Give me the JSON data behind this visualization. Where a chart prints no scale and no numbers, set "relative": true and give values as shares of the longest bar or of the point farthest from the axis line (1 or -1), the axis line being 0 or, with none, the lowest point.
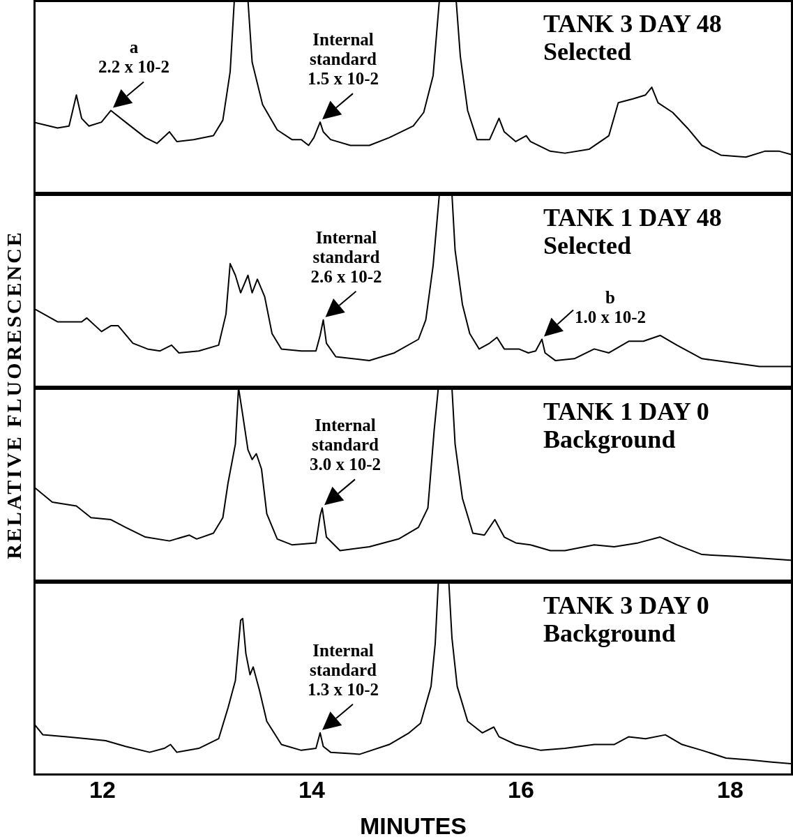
{
  "chart_data": [
    {
      "type": "line",
      "title": "TANK 3 DAY 48",
      "subtitle": "Selected",
      "relative": true,
      "xlim": [
        11.34,
        18.6
      ],
      "tick_labels": false,
      "x": [
        11.34,
        11.57,
        11.68,
        11.75,
        11.8,
        11.87,
        11.99,
        12.08,
        12.22,
        12.41,
        12.52,
        12.64,
        12.71,
        12.87,
        13.06,
        13.15,
        13.22,
        13.26,
        13.39,
        13.43,
        13.53,
        13.67,
        13.81,
        13.9,
        13.97,
        14.02,
        14.08,
        14.11,
        14.18,
        14.37,
        14.55,
        14.74,
        14.97,
        15.07,
        15.16,
        15.22,
        15.38,
        15.42,
        15.49,
        15.58,
        15.7,
        15.79,
        15.84,
        15.95,
        16.05,
        16.09,
        16.28,
        16.42,
        16.65,
        16.84,
        16.93,
        17.07,
        17.19,
        17.25,
        17.31,
        17.45,
        17.59,
        17.73,
        17.91,
        18.15,
        18.33,
        18.47,
        18.6
      ],
      "series": [
        {
          "color": "#000000",
          "values": [
            0.37,
            0.34,
            0.35,
            0.51,
            0.39,
            0.35,
            0.37,
            0.43,
            0.37,
            0.29,
            0.26,
            0.32,
            0.27,
            0.28,
            0.3,
            0.38,
            0.63,
            1,
            1,
            0.68,
            0.46,
            0.33,
            0.28,
            0.28,
            0.25,
            0.29,
            0.37,
            0.32,
            0.28,
            0.25,
            0.25,
            0.29,
            0.35,
            0.42,
            0.61,
            1,
            1,
            0.71,
            0.43,
            0.28,
            0.28,
            0.39,
            0.32,
            0.27,
            0.3,
            0.27,
            0.22,
            0.21,
            0.23,
            0.3,
            0.47,
            0.49,
            0.51,
            0.55,
            0.47,
            0.42,
            0.34,
            0.25,
            0.2,
            0.19,
            0.22,
            0.22,
            0.2
          ]
        }
      ],
      "annotations": [
        {
          "text": "a\n2.2 x 10-2",
          "x": 12.08,
          "y": 0.43
        },
        {
          "text": "Internal\nstandard\n1.5 x 10-2",
          "x": 14.08,
          "y": 0.37
        }
      ],
      "ylabel": "RELATIVE FLUORESCENCE"
    },
    {
      "type": "line",
      "title": "TANK 1 DAY 48",
      "subtitle": "Selected",
      "relative": true,
      "xlim": [
        11.34,
        18.6
      ],
      "tick_labels": false,
      "x": [
        11.34,
        11.57,
        11.8,
        11.85,
        11.99,
        12.08,
        12.15,
        12.29,
        12.43,
        12.55,
        12.66,
        12.73,
        12.92,
        13.11,
        13.18,
        13.22,
        13.27,
        13.32,
        13.39,
        13.43,
        13.48,
        13.55,
        13.62,
        13.71,
        13.9,
        14.04,
        14.08,
        14.11,
        14.14,
        14.23,
        14.55,
        14.79,
        15.02,
        15.09,
        15.16,
        15.22,
        15.34,
        15.37,
        15.44,
        15.51,
        15.6,
        15.7,
        15.77,
        15.84,
        15.98,
        16.07,
        16.14,
        16.2,
        16.23,
        16.33,
        16.51,
        16.7,
        16.84,
        17.03,
        17.17,
        17.33,
        17.49,
        17.73,
        18.0,
        18.28,
        18.6
      ],
      "series": [
        {
          "color": "#000000",
          "values": [
            0.41,
            0.34,
            0.34,
            0.36,
            0.29,
            0.32,
            0.32,
            0.23,
            0.2,
            0.19,
            0.22,
            0.18,
            0.19,
            0.22,
            0.38,
            0.64,
            0.58,
            0.49,
            0.58,
            0.49,
            0.56,
            0.47,
            0.28,
            0.2,
            0.19,
            0.19,
            0.27,
            0.35,
            0.23,
            0.16,
            0.14,
            0.18,
            0.25,
            0.35,
            0.63,
            1,
            1,
            0.71,
            0.43,
            0.28,
            0.2,
            0.23,
            0.26,
            0.2,
            0.2,
            0.18,
            0.19,
            0.25,
            0.18,
            0.14,
            0.15,
            0.2,
            0.18,
            0.24,
            0.24,
            0.27,
            0.22,
            0.15,
            0.13,
            0.11,
            0.11
          ]
        }
      ],
      "annotations": [
        {
          "text": "Internal\nstandard\n2.6 x 10-2",
          "x": 14.11,
          "y": 0.35
        },
        {
          "text": "b\n1.0 x 10-2",
          "x": 16.2,
          "y": 0.25
        }
      ]
    },
    {
      "type": "line",
      "title": "TANK 1 DAY 0",
      "subtitle": "Background",
      "relative": true,
      "xlim": [
        11.34,
        18.6
      ],
      "tick_labels": false,
      "x": [
        11.34,
        11.52,
        11.75,
        11.89,
        12.08,
        12.22,
        12.41,
        12.64,
        12.83,
        12.9,
        13.06,
        13.15,
        13.2,
        13.27,
        13.3,
        13.34,
        13.39,
        13.43,
        13.47,
        13.52,
        13.57,
        13.67,
        13.81,
        14.04,
        14.08,
        14.1,
        14.14,
        14.27,
        14.55,
        14.83,
        15.02,
        15.11,
        15.17,
        15.21,
        15.34,
        15.37,
        15.44,
        15.54,
        15.65,
        15.75,
        15.84,
        15.95,
        16.09,
        16.28,
        16.42,
        16.7,
        16.89,
        17.12,
        17.33,
        17.49,
        17.73,
        18.05,
        18.6
      ],
      "series": [
        {
          "color": "#000000",
          "values": [
            0.49,
            0.41,
            0.39,
            0.33,
            0.32,
            0.28,
            0.23,
            0.21,
            0.24,
            0.22,
            0.25,
            0.33,
            0.51,
            0.71,
            1,
            0.86,
            0.68,
            0.63,
            0.66,
            0.58,
            0.35,
            0.22,
            0.19,
            0.2,
            0.34,
            0.38,
            0.23,
            0.16,
            0.18,
            0.22,
            0.28,
            0.38,
            0.78,
            1,
            1,
            0.71,
            0.43,
            0.25,
            0.24,
            0.32,
            0.23,
            0.2,
            0.19,
            0.16,
            0.16,
            0.19,
            0.18,
            0.2,
            0.23,
            0.19,
            0.14,
            0.13,
            0.11
          ]
        }
      ],
      "annotations": [
        {
          "text": "Internal\nstandard\n3.0 x 10-2",
          "x": 14.1,
          "y": 0.38
        }
      ]
    },
    {
      "type": "line",
      "title": "TANK 3 DAY 0",
      "subtitle": "Background",
      "relative": true,
      "xlim": [
        11.34,
        18.6
      ],
      "xticks": [
        12,
        14,
        16,
        18
      ],
      "tick_labels": "x",
      "xlabel": "MINUTES",
      "x": [
        11.34,
        11.43,
        11.66,
        11.85,
        12.03,
        12.22,
        12.45,
        12.59,
        12.65,
        12.71,
        12.92,
        13.11,
        13.2,
        13.27,
        13.32,
        13.34,
        13.37,
        13.41,
        13.44,
        13.5,
        13.57,
        13.71,
        13.9,
        14.04,
        14.08,
        14.11,
        14.18,
        14.46,
        14.74,
        14.93,
        15.04,
        15.14,
        15.18,
        15.21,
        15.31,
        15.34,
        15.39,
        15.49,
        15.63,
        15.74,
        15.79,
        15.95,
        16.19,
        16.42,
        16.7,
        16.89,
        17.03,
        17.19,
        17.38,
        17.54,
        17.73,
        17.96,
        18.2,
        18.38,
        18.6
      ],
      "series": [
        {
          "color": "#000000",
          "values": [
            0.27,
            0.21,
            0.2,
            0.19,
            0.18,
            0.15,
            0.12,
            0.14,
            0.16,
            0.12,
            0.14,
            0.19,
            0.35,
            0.49,
            0.8,
            0.81,
            0.63,
            0.52,
            0.56,
            0.44,
            0.28,
            0.16,
            0.13,
            0.14,
            0.22,
            0.15,
            0.12,
            0.11,
            0.16,
            0.22,
            0.27,
            0.46,
            0.68,
            1,
            1,
            0.71,
            0.46,
            0.28,
            0.22,
            0.25,
            0.2,
            0.16,
            0.13,
            0.14,
            0.16,
            0.16,
            0.2,
            0.19,
            0.21,
            0.16,
            0.13,
            0.09,
            0.08,
            0.07,
            0.06
          ]
        }
      ],
      "annotations": [
        {
          "text": "Internal\nstandard\n1.3 x 10-2",
          "x": 14.08,
          "y": 0.22
        }
      ]
    }
  ]
}
